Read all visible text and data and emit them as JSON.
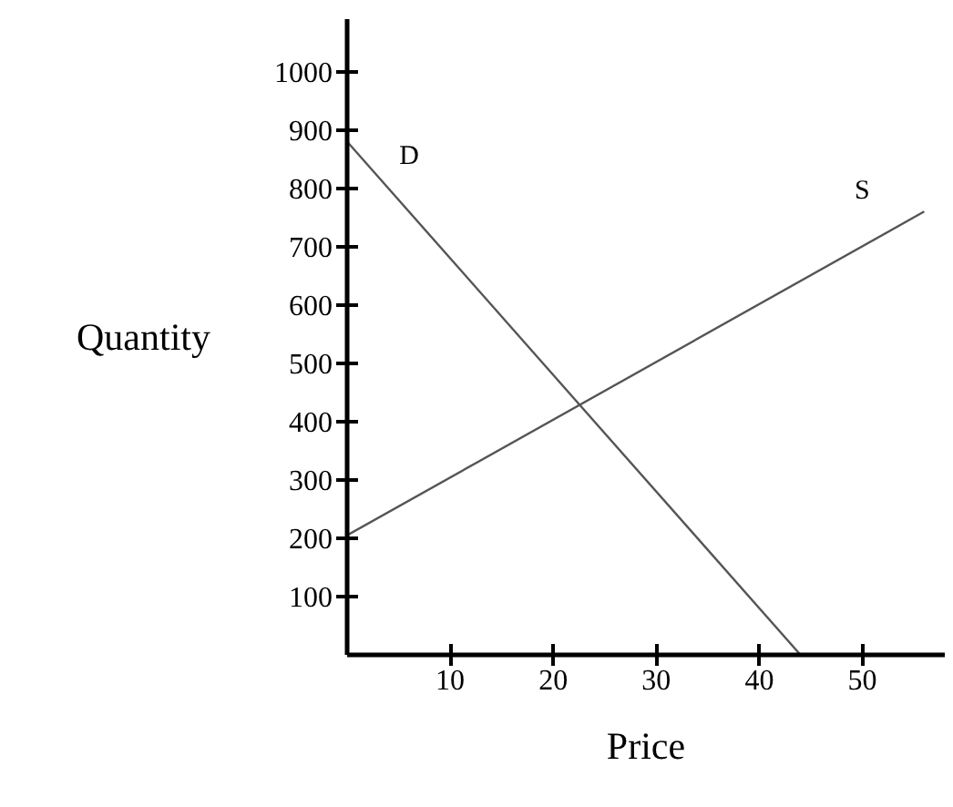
{
  "chart_data": {
    "type": "line",
    "xlabel": "Price",
    "ylabel": "Quantity",
    "xlim": [
      0,
      58
    ],
    "ylim": [
      0,
      1090
    ],
    "xticks": [
      10,
      20,
      30,
      40,
      50
    ],
    "yticks": [
      100,
      200,
      300,
      400,
      500,
      600,
      700,
      800,
      900,
      1000
    ],
    "series": [
      {
        "name": "D",
        "color": "#555555",
        "x": [
          0,
          44
        ],
        "values": [
          880,
          0
        ]
      },
      {
        "name": "S",
        "color": "#555555",
        "x": [
          0,
          56
        ],
        "values": [
          205,
          760
        ]
      }
    ],
    "marker": "none",
    "line_style": "solid",
    "grid": false,
    "legend": false
  }
}
